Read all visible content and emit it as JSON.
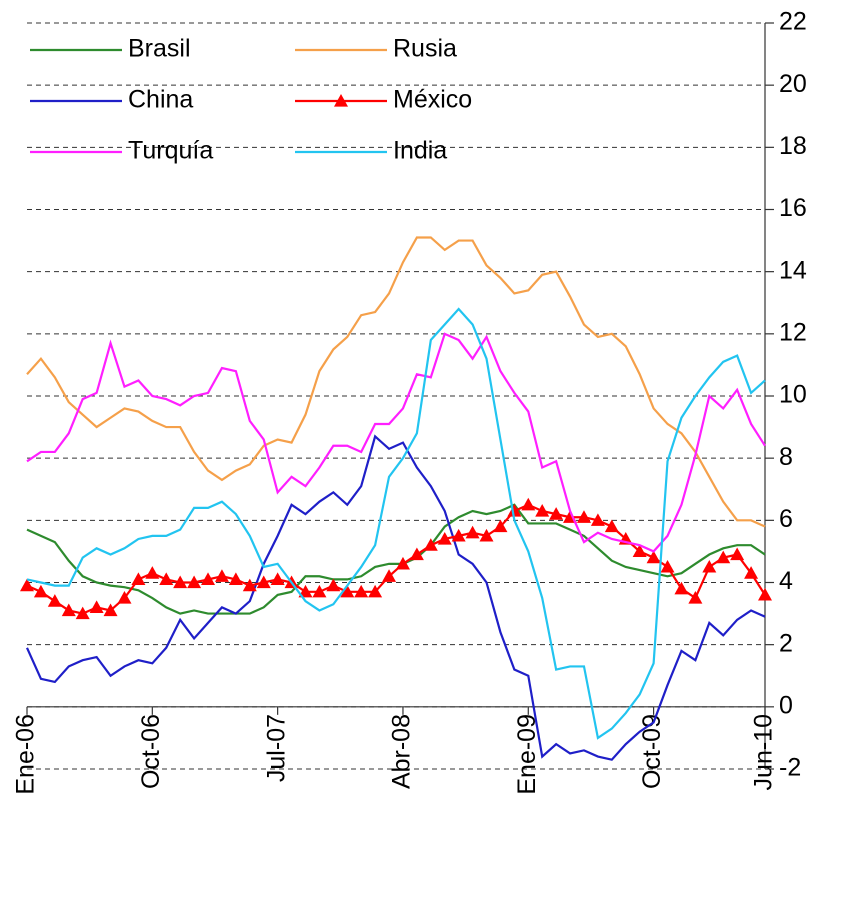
{
  "chart_data": {
    "type": "line",
    "categories": [
      "Ene-06",
      null,
      null,
      null,
      null,
      null,
      null,
      null,
      null,
      "Oct-06",
      null,
      null,
      null,
      null,
      null,
      null,
      null,
      null,
      "Jul-07",
      null,
      null,
      null,
      null,
      null,
      null,
      null,
      null,
      "Abr-08",
      null,
      null,
      null,
      null,
      null,
      null,
      null,
      null,
      "Ene-09",
      null,
      null,
      null,
      null,
      null,
      null,
      null,
      null,
      "Oct-09",
      null,
      null,
      null,
      null,
      null,
      null,
      null,
      "Jun-10"
    ],
    "series": [
      {
        "name": "Brasil",
        "color": "#2e8b2e",
        "values": [
          5.7,
          5.5,
          5.3,
          4.7,
          4.2,
          4.0,
          3.9,
          3.85,
          3.75,
          3.5,
          3.2,
          3.0,
          3.1,
          3.0,
          3.0,
          3.0,
          3.0,
          3.2,
          3.6,
          3.7,
          4.2,
          4.2,
          4.1,
          4.1,
          4.2,
          4.5,
          4.6,
          4.6,
          4.8,
          5.2,
          5.8,
          6.1,
          6.3,
          6.2,
          6.3,
          6.5,
          5.9,
          5.9,
          5.9,
          5.7,
          5.5,
          5.1,
          4.7,
          4.5,
          4.4,
          4.3,
          4.2,
          4.3,
          4.6,
          4.9,
          5.1,
          5.2,
          5.2,
          4.9
        ]
      },
      {
        "name": "Rusia",
        "color": "#f5a04a",
        "values": [
          10.7,
          11.2,
          10.6,
          9.8,
          9.4,
          9.0,
          9.3,
          9.6,
          9.5,
          9.2,
          9.0,
          9.0,
          8.2,
          7.6,
          7.3,
          7.6,
          7.8,
          8.4,
          8.6,
          8.5,
          9.4,
          10.8,
          11.5,
          11.9,
          12.6,
          12.7,
          13.3,
          14.3,
          15.1,
          15.1,
          14.7,
          15.0,
          15.0,
          14.2,
          13.8,
          13.3,
          13.4,
          13.9,
          14.0,
          13.2,
          12.3,
          11.9,
          12.0,
          11.6,
          10.7,
          9.6,
          9.1,
          8.8,
          8.2,
          7.4,
          6.6,
          6.0,
          6.0,
          5.8
        ]
      },
      {
        "name": "China",
        "color": "#1f1fc8",
        "values": [
          1.9,
          0.9,
          0.8,
          1.3,
          1.5,
          1.6,
          1.0,
          1.3,
          1.5,
          1.4,
          1.9,
          2.8,
          2.2,
          2.7,
          3.2,
          3.0,
          3.4,
          4.6,
          5.5,
          6.5,
          6.2,
          6.6,
          6.9,
          6.5,
          7.1,
          8.7,
          8.3,
          8.5,
          7.7,
          7.1,
          6.3,
          4.9,
          4.6,
          4.0,
          2.4,
          1.2,
          1.0,
          -1.6,
          -1.2,
          -1.5,
          -1.4,
          -1.6,
          -1.7,
          -1.2,
          -0.8,
          -0.5,
          0.7,
          1.8,
          1.5,
          2.7,
          2.3,
          2.8,
          3.1,
          2.9
        ]
      },
      {
        "name": "México",
        "color": "#ff0000",
        "marker": "triangle",
        "values": [
          3.9,
          3.7,
          3.4,
          3.1,
          3.0,
          3.2,
          3.1,
          3.5,
          4.1,
          4.3,
          4.1,
          4.0,
          4.0,
          4.1,
          4.2,
          4.1,
          3.9,
          4.0,
          4.1,
          4.0,
          3.7,
          3.7,
          3.9,
          3.7,
          3.7,
          3.7,
          4.2,
          4.6,
          4.9,
          5.2,
          5.4,
          5.5,
          5.6,
          5.5,
          5.8,
          6.3,
          6.5,
          6.3,
          6.2,
          6.1,
          6.1,
          6.0,
          5.8,
          5.4,
          5.0,
          4.8,
          4.5,
          3.8,
          3.5,
          4.5,
          4.8,
          4.9,
          4.3,
          3.6
        ]
      },
      {
        "name": "Turquía",
        "color": "#ff1fff",
        "values": [
          7.9,
          8.2,
          8.2,
          8.8,
          9.9,
          10.1,
          11.7,
          10.3,
          10.5,
          10.0,
          9.9,
          9.7,
          10.0,
          10.1,
          10.9,
          10.8,
          9.2,
          8.6,
          6.9,
          7.4,
          7.1,
          7.7,
          8.4,
          8.4,
          8.2,
          9.1,
          9.1,
          9.6,
          10.7,
          10.6,
          12.0,
          11.8,
          11.2,
          11.9,
          10.8,
          10.1,
          9.5,
          7.7,
          7.9,
          6.3,
          5.3,
          5.6,
          5.4,
          5.3,
          5.2,
          5.0,
          5.5,
          6.5,
          8.1,
          10.0,
          9.6,
          10.2,
          9.1,
          8.4
        ]
      },
      {
        "name": "India",
        "color": "#22c4f0",
        "values": [
          4.1,
          4.0,
          3.9,
          3.9,
          4.8,
          5.1,
          4.9,
          5.1,
          5.4,
          5.5,
          5.5,
          5.7,
          6.4,
          6.4,
          6.6,
          6.2,
          5.5,
          4.5,
          4.6,
          4.0,
          3.4,
          3.1,
          3.3,
          3.9,
          4.5,
          5.2,
          7.4,
          8.0,
          8.8,
          11.8,
          12.3,
          12.8,
          12.3,
          11.2,
          8.6,
          6.0,
          5.0,
          3.5,
          1.2,
          1.3,
          1.3,
          -1.0,
          -0.7,
          -0.2,
          0.4,
          1.4,
          7.9,
          9.3,
          10.0,
          10.6,
          11.1,
          11.3,
          10.1,
          10.5
        ]
      }
    ],
    "ylim": [
      -2,
      22
    ],
    "yticks": [
      -2,
      0,
      2,
      4,
      6,
      8,
      10,
      12,
      14,
      16,
      18,
      20,
      22
    ],
    "y_axis_side": "right",
    "grid": true,
    "legend": "upper left",
    "legend_columns": 2
  }
}
